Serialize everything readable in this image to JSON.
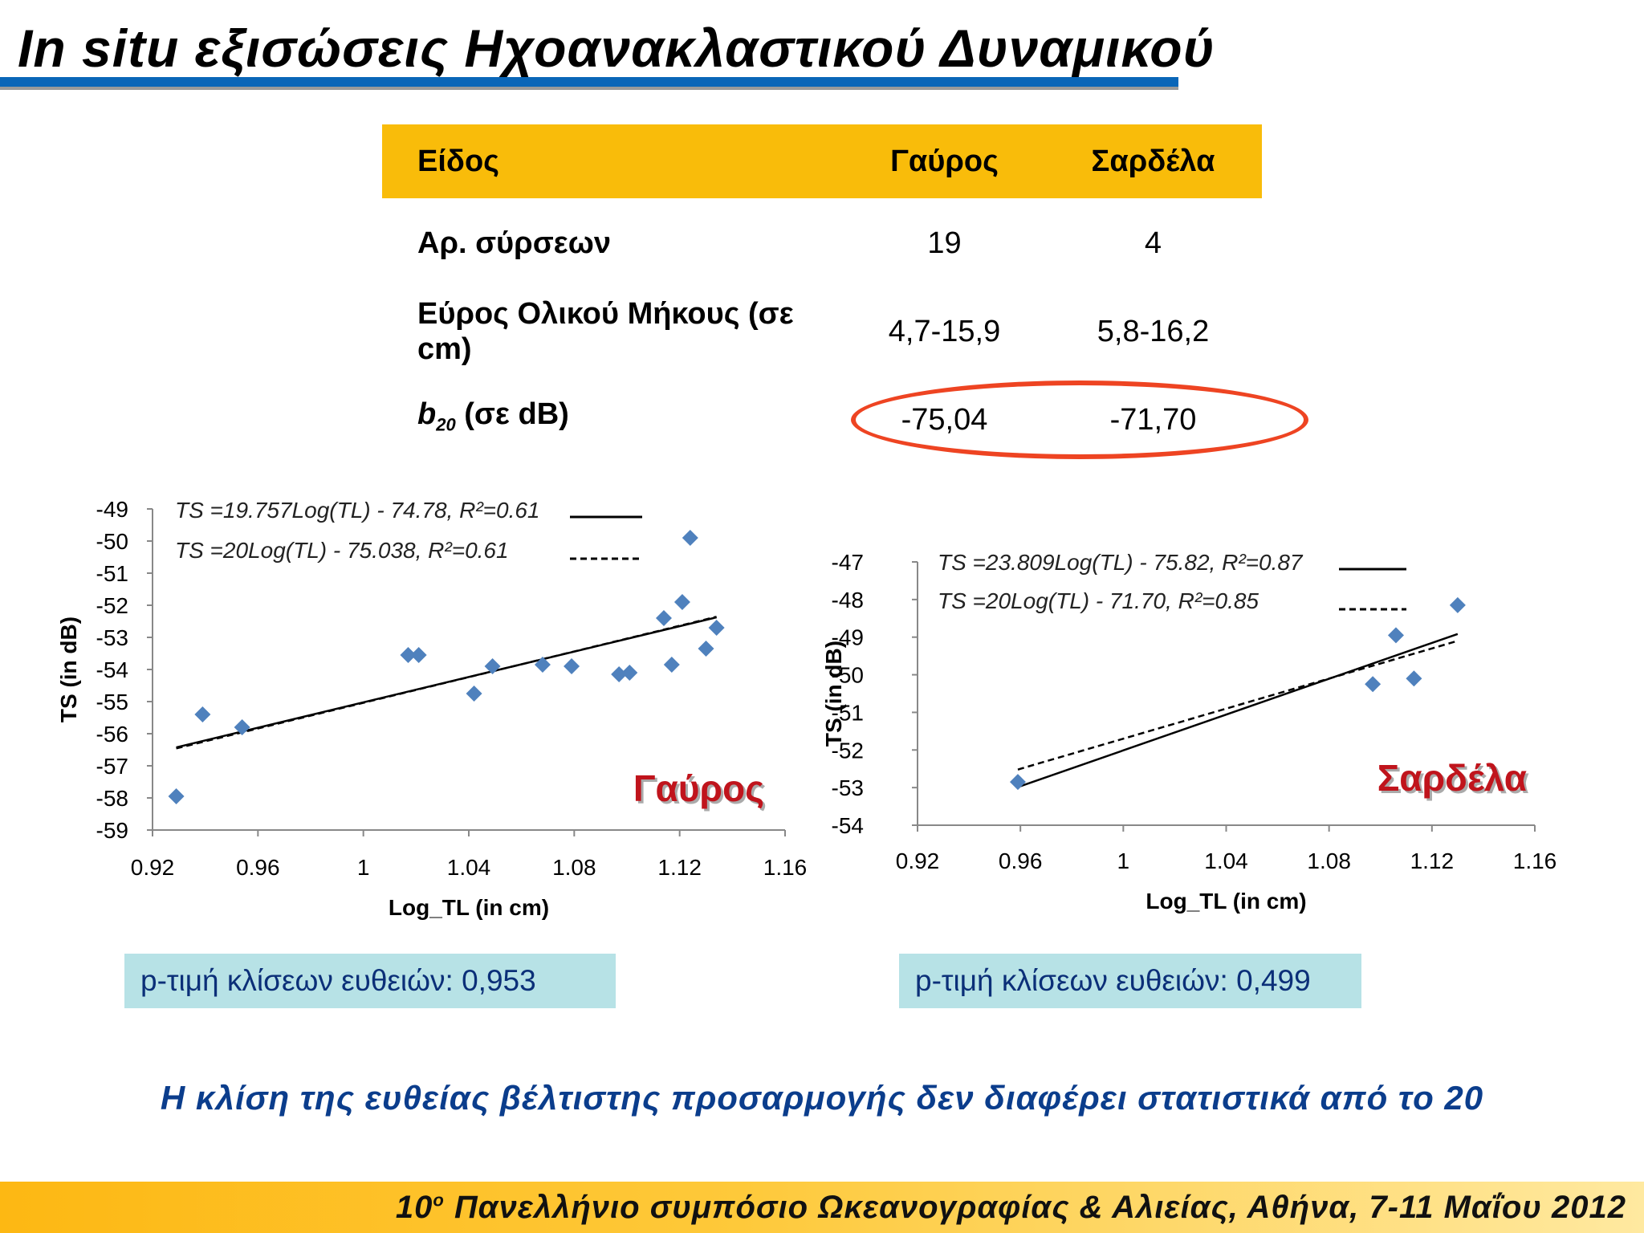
{
  "slide": {
    "title": "In situ εξισώσεις Ηχοανακλαστικού Δυναμικού",
    "conclusion": "Η κλίση της ευθείας βέλτιστης προσαρμογής δεν διαφέρει στατιστικά από το 20",
    "footer": {
      "prefix": "10",
      "sup": "ο",
      "text": "Πανελλήνιο συμπόσιο Ωκεανογραφίας & Αλιείας, Αθήνα, 7-11 Μαΐου  2012"
    }
  },
  "table": {
    "headers": [
      "Είδος",
      "Γαύρος",
      "Σαρδέλα"
    ],
    "rows": [
      {
        "label": "Αρ. σύρσεων",
        "values": [
          "19",
          "4"
        ]
      },
      {
        "label": "Εύρος Ολικού Μήκους (σε cm)",
        "values": [
          "4,7-15,9",
          "5,8-16,2"
        ]
      },
      {
        "label_main": "b",
        "label_sub": "20",
        "label_rest": " (σε dB)",
        "values": [
          "-75,04",
          "-71,70"
        ]
      }
    ],
    "highlight_color": "#ee4422"
  },
  "pvalues": [
    "p-τιμή κλίσεων ευθειών: 0,953",
    "p-τιμή κλίσεων ευθειών: 0,499"
  ],
  "chart_data": [
    {
      "type": "scatter",
      "species_label": "Γαύρος",
      "xlabel": "Log_TL  (in cm)",
      "ylabel": "TS  (in dB)",
      "xlim": [
        0.92,
        1.16
      ],
      "ylim": [
        -59,
        -49
      ],
      "xticks": [
        "0.92",
        "0.96",
        "1",
        "1.04",
        "1.08",
        "1.12",
        "1.16"
      ],
      "yticks": [
        "-49",
        "-50",
        "-51",
        "-52",
        "-53",
        "-54",
        "-55",
        "-56",
        "-57",
        "-58",
        "-59"
      ],
      "x": [
        0.929,
        0.939,
        0.954,
        1.017,
        1.021,
        1.042,
        1.049,
        1.068,
        1.079,
        1.097,
        1.101,
        1.114,
        1.117,
        1.121,
        1.124,
        1.13,
        1.134
      ],
      "y": [
        -57.95,
        -55.4,
        -55.8,
        -53.55,
        -53.55,
        -54.75,
        -53.9,
        -53.85,
        -53.9,
        -54.15,
        -54.1,
        -52.4,
        -53.85,
        -51.9,
        -49.9,
        -53.35,
        -52.7
      ],
      "point_color": "#4f81bd",
      "fits": [
        {
          "label": "TS =19.757Log(TL) - 74.78, R²=0.61",
          "style": "solid",
          "slope": 19.757,
          "intercept": -74.78,
          "xrange": [
            0.929,
            1.134
          ]
        },
        {
          "label": "TS =20Log(TL) - 75.038, R²=0.61",
          "style": "dashed",
          "slope": 20,
          "intercept": -75.038,
          "xrange": [
            0.929,
            1.134
          ]
        }
      ],
      "legend": "top"
    },
    {
      "type": "scatter",
      "species_label": "Σαρδέλα",
      "xlabel": "Log_TL  (in cm)",
      "ylabel": "TS  (in dB)",
      "xlim": [
        0.92,
        1.16
      ],
      "ylim": [
        -54,
        -47
      ],
      "xticks": [
        "0.92",
        "0.96",
        "1",
        "1.04",
        "1.08",
        "1.12",
        "1.16"
      ],
      "yticks": [
        "-47",
        "-48",
        "-49",
        "-50",
        "-51",
        "-52",
        "-53",
        "-54"
      ],
      "x": [
        0.959,
        1.097,
        1.106,
        1.113,
        1.13
      ],
      "y": [
        -52.85,
        -50.25,
        -48.95,
        -50.1,
        -48.15
      ],
      "point_color": "#4f81bd",
      "fits": [
        {
          "label": "TS =23.809Log(TL) - 75.82, R²=0.87",
          "style": "solid",
          "slope": 23.809,
          "intercept": -75.82,
          "xrange": [
            0.959,
            1.13
          ]
        },
        {
          "label": "TS =20Log(TL) - 71.70, R²=0.85",
          "style": "dashed",
          "slope": 20,
          "intercept": -71.7,
          "xrange": [
            0.959,
            1.13
          ]
        }
      ],
      "legend": "top"
    }
  ]
}
